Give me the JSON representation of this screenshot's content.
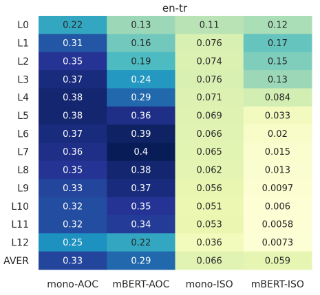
{
  "chart_data": {
    "type": "heatmap",
    "title": "en-tr",
    "xlabel": "",
    "ylabel": "",
    "columns": [
      "mono-AOC",
      "mBERT-AOC",
      "mono-ISO",
      "mBERT-ISO"
    ],
    "rows": [
      "L0",
      "L1",
      "L2",
      "L3",
      "L4",
      "L5",
      "L6",
      "L7",
      "L8",
      "L9",
      "L10",
      "L11",
      "L12",
      "AVER"
    ],
    "values": [
      [
        0.22,
        0.13,
        0.11,
        0.12
      ],
      [
        0.31,
        0.16,
        0.076,
        0.17
      ],
      [
        0.35,
        0.19,
        0.074,
        0.15
      ],
      [
        0.37,
        0.24,
        0.076,
        0.13
      ],
      [
        0.38,
        0.29,
        0.071,
        0.084
      ],
      [
        0.38,
        0.36,
        0.069,
        0.033
      ],
      [
        0.37,
        0.39,
        0.066,
        0.02
      ],
      [
        0.36,
        0.4,
        0.065,
        0.015
      ],
      [
        0.35,
        0.38,
        0.062,
        0.013
      ],
      [
        0.33,
        0.37,
        0.056,
        0.0097
      ],
      [
        0.32,
        0.35,
        0.051,
        0.006
      ],
      [
        0.32,
        0.34,
        0.053,
        0.0058
      ],
      [
        0.25,
        0.22,
        0.036,
        0.0073
      ],
      [
        0.33,
        0.29,
        0.066,
        0.059
      ]
    ],
    "labels": [
      [
        "0.22",
        "0.13",
        "0.11",
        "0.12"
      ],
      [
        "0.31",
        "0.16",
        "0.076",
        "0.17"
      ],
      [
        "0.35",
        "0.19",
        "0.074",
        "0.15"
      ],
      [
        "0.37",
        "0.24",
        "0.076",
        "0.13"
      ],
      [
        "0.38",
        "0.29",
        "0.071",
        "0.084"
      ],
      [
        "0.38",
        "0.36",
        "0.069",
        "0.033"
      ],
      [
        "0.37",
        "0.39",
        "0.066",
        "0.02"
      ],
      [
        "0.36",
        "0.4",
        "0.065",
        "0.015"
      ],
      [
        "0.35",
        "0.38",
        "0.062",
        "0.013"
      ],
      [
        "0.33",
        "0.37",
        "0.056",
        "0.0097"
      ],
      [
        "0.32",
        "0.35",
        "0.051",
        "0.006"
      ],
      [
        "0.32",
        "0.34",
        "0.053",
        "0.0058"
      ],
      [
        "0.25",
        "0.22",
        "0.036",
        "0.0073"
      ],
      [
        "0.33",
        "0.29",
        "0.066",
        "0.059"
      ]
    ],
    "colormap": "YlGnBu",
    "colormap_stops": [
      "#ffffd9",
      "#edf8b1",
      "#c7e9b4",
      "#7fcdbb",
      "#41b6c4",
      "#1d91c0",
      "#225ea8",
      "#253494",
      "#081d58"
    ],
    "vmin": 0,
    "vmax": 0.4,
    "dark_text_color": "#262626",
    "light_text_color": "#ffffff",
    "grid": false,
    "legend": "none"
  }
}
